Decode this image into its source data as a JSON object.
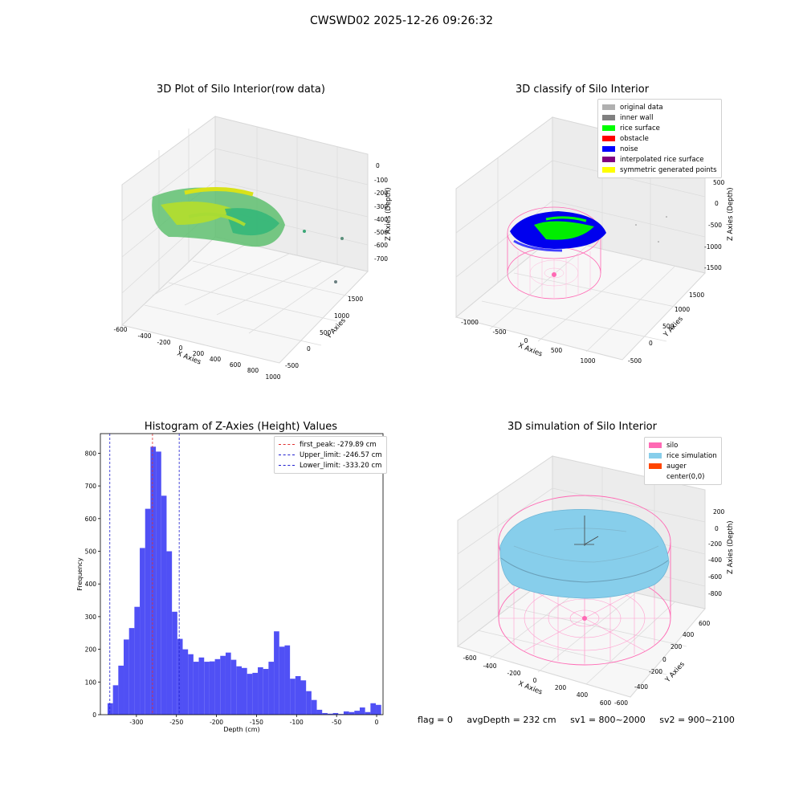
{
  "suptitle": "CWSWD02 2025-12-26 09:26:32",
  "footer": {
    "flag": "flag = 0",
    "avg_depth": "avgDepth = 232 cm",
    "sv1": "sv1 = 800~2000",
    "sv2": "sv2 = 900~2100"
  },
  "colors": {
    "hist_bar": "#5050f5",
    "first_peak": "#e03030",
    "limits": "#2020d0",
    "silo_wire": "#ff69b4",
    "rice_sim": "#87ceeb",
    "auger": "#ff4500"
  },
  "chart_data": [
    {
      "type": "scatter",
      "title": "3D Plot of Silo Interior(row data)",
      "xlabel": "X Axies",
      "ylabel": "Y Axies",
      "zlabel": "Z Axies (Depth)",
      "x_ticks": [
        "-600",
        "-400",
        "-200",
        "0",
        "200",
        "400",
        "600",
        "800",
        "1000"
      ],
      "y_ticks": [
        "-500",
        "0",
        "500",
        "1000",
        "1500"
      ],
      "z_ticks": [
        "0",
        "-100",
        "-200",
        "-300",
        "-400",
        "-500",
        "-600",
        "-700"
      ],
      "colormap": "viridis"
    },
    {
      "type": "scatter",
      "title": "3D classify of Silo Interior",
      "xlabel": "X Axies",
      "ylabel": "Y Axies",
      "zlabel": "Z Axies (Depth)",
      "x_ticks": [
        "-1000",
        "-500",
        "0",
        "500",
        "1000"
      ],
      "y_ticks": [
        "-500",
        "0",
        "500",
        "1000",
        "1500"
      ],
      "z_ticks": [
        "500",
        "0",
        "-500",
        "-1000",
        "-1500"
      ],
      "legend": [
        {
          "label": "original data",
          "color": "#b0b0b0"
        },
        {
          "label": "inner wall",
          "color": "#808080"
        },
        {
          "label": "rice surface",
          "color": "#00ff00"
        },
        {
          "label": "obstacle",
          "color": "#ff0000"
        },
        {
          "label": "noise",
          "color": "#0000ff"
        },
        {
          "label": "interpolated rice surface",
          "color": "#800080"
        },
        {
          "label": "symmetric generated points",
          "color": "#ffff00"
        }
      ],
      "legend_position": "top-right"
    },
    {
      "type": "bar",
      "title": "Histogram of Z-Axies (Height) Values",
      "xlabel": "Depth (cm)",
      "ylabel": "Frequency",
      "xlim": [
        -345,
        8
      ],
      "ylim": [
        0,
        860
      ],
      "x_ticks": [
        -300,
        -250,
        -200,
        -150,
        -100,
        -50,
        0
      ],
      "y_ticks": [
        0,
        100,
        200,
        300,
        400,
        500,
        600,
        700,
        800
      ],
      "bin_start": -336,
      "bin_width": 6.7,
      "values": [
        35,
        90,
        150,
        230,
        265,
        330,
        510,
        630,
        820,
        805,
        670,
        500,
        315,
        232,
        200,
        185,
        162,
        175,
        162,
        163,
        170,
        180,
        190,
        168,
        148,
        143,
        125,
        128,
        145,
        140,
        162,
        255,
        208,
        212,
        110,
        118,
        105,
        72,
        45,
        15,
        5,
        3,
        5,
        2,
        10,
        8,
        12,
        22,
        8,
        35,
        30
      ],
      "lines": [
        {
          "label": "first_peak: -279.89 cm",
          "x": -279.89,
          "color": "#e03030"
        },
        {
          "label": "Upper_limit: -246.57 cm",
          "x": -246.57,
          "color": "#2020d0"
        },
        {
          "label": "Lower_limit: -333.20 cm",
          "x": -333.2,
          "color": "#2020d0"
        }
      ],
      "legend_position": "top-right"
    },
    {
      "type": "scatter",
      "title": "3D simulation of Silo Interior",
      "xlabel": "X Axies",
      "ylabel": "Y Axies",
      "zlabel": "Z Axies (Depth)",
      "x_ticks": [
        "-600",
        "-400",
        "-200",
        "0",
        "200",
        "400",
        "600"
      ],
      "y_ticks": [
        "-600",
        "-400",
        "-200",
        "0",
        "200",
        "400",
        "600"
      ],
      "z_ticks": [
        "200",
        "0",
        "-200",
        "-400",
        "-600",
        "-800"
      ],
      "legend": [
        {
          "label": "silo",
          "color": "#ff69b4"
        },
        {
          "label": "rice simulation",
          "color": "#87ceeb"
        },
        {
          "label": "auger",
          "color": "#ff4500"
        },
        {
          "label": "center(0,0)",
          "color": ""
        }
      ],
      "legend_position": "top-right"
    }
  ]
}
